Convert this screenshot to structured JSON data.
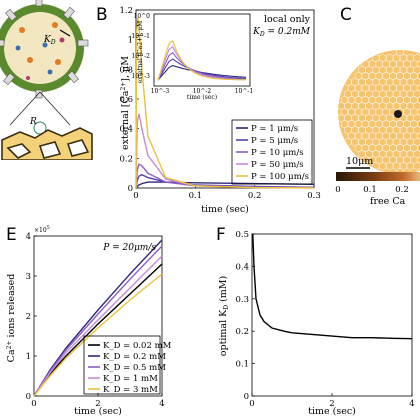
{
  "panels": {
    "B": {
      "letter": "B"
    },
    "C": {
      "letter": "C"
    },
    "E": {
      "letter": "E"
    },
    "F": {
      "letter": "F"
    }
  },
  "panelA": {
    "K_label": "K",
    "K_sub": "D",
    "R_label": "R"
  },
  "panelC": {
    "scale_label": "10μm",
    "colorbar_ticks": [
      "0",
      "0.1",
      "0.2"
    ],
    "colorbar_label": "free Ca",
    "colorbar_colors": [
      "#2a1608",
      "#7a3d12",
      "#c06a2b",
      "#e8b77a"
    ]
  },
  "chart_data": [
    {
      "id": "B",
      "type": "line",
      "xlabel": "time (sec)",
      "ylabel": "external [Ca2+], μM",
      "xlim": [
        0,
        0.3
      ],
      "ylim": [
        0,
        1.2
      ],
      "xticks": [
        "0",
        "0.1",
        "0.2",
        "0.3"
      ],
      "yticks": [
        "0",
        "0.2",
        "0.4",
        "0.6",
        "0.8",
        "1",
        "1.2"
      ],
      "annotation": [
        "local only",
        "K_D = 0.2mM"
      ],
      "legend_position": "lower-right",
      "series": [
        {
          "name": "P = 1 μm/s",
          "color": "#2d2a7a",
          "x": [
            0,
            0.002,
            0.005,
            0.01,
            0.02,
            0.05,
            0.1,
            0.2,
            0.3
          ],
          "y": [
            0,
            0.01,
            0.02,
            0.03,
            0.04,
            0.04,
            0.035,
            0.03,
            0.025
          ]
        },
        {
          "name": "P = 5 μm/s",
          "color": "#5a3fb0",
          "x": [
            0,
            0.002,
            0.005,
            0.01,
            0.02,
            0.05,
            0.1,
            0.2,
            0.3
          ],
          "y": [
            0,
            0.05,
            0.08,
            0.09,
            0.07,
            0.04,
            0.02,
            0.01,
            0.005
          ]
        },
        {
          "name": "P = 10 μm/s",
          "color": "#8c5cc8",
          "x": [
            0,
            0.002,
            0.005,
            0.01,
            0.02,
            0.05,
            0.1,
            0.2,
            0.3
          ],
          "y": [
            0,
            0.12,
            0.16,
            0.15,
            0.1,
            0.04,
            0.015,
            0.005,
            0.002
          ]
        },
        {
          "name": "P = 50 μm/s",
          "color": "#c88ad8",
          "x": [
            0,
            0.002,
            0.005,
            0.01,
            0.02,
            0.05,
            0.1,
            0.2,
            0.3
          ],
          "y": [
            0,
            0.45,
            0.5,
            0.4,
            0.22,
            0.06,
            0.015,
            0.004,
            0.001
          ]
        },
        {
          "name": "P = 100 μm/s",
          "color": "#e8c33a",
          "x": [
            0,
            0.001,
            0.003,
            0.005,
            0.01,
            0.02,
            0.05,
            0.1,
            0.2,
            0.3
          ],
          "y": [
            0,
            1.05,
            1.15,
            1.1,
            0.8,
            0.35,
            0.07,
            0.015,
            0.003,
            0.001
          ]
        }
      ],
      "inset": {
        "type": "line",
        "log_x": true,
        "log_y": true,
        "xlabel": "time (sec)",
        "ylabel": "external [Ca2+], μM",
        "xticks": [
          "10^-3",
          "10^-2",
          "10^-1"
        ],
        "yticks": [
          "10^0",
          "10^-1",
          "10^-2",
          "10^-3"
        ]
      }
    },
    {
      "id": "E",
      "type": "line",
      "xlabel": "time (sec)",
      "ylabel": "Ca2+ ions released",
      "exponent_label": "×10^5",
      "xlim": [
        0,
        4
      ],
      "ylim": [
        0,
        4
      ],
      "xticks": [
        "0",
        "2",
        "4"
      ],
      "yticks": [
        "0",
        "1",
        "2",
        "3",
        "4"
      ],
      "annotation": "P = 20μm/s",
      "legend_position": "lower-right",
      "series": [
        {
          "name": "K_D = 0.02 mM",
          "color": "#000000",
          "x": [
            0,
            0.5,
            1,
            2,
            3,
            4
          ],
          "y": [
            0,
            0.55,
            1.0,
            1.8,
            2.55,
            3.3
          ]
        },
        {
          "name": "K_D = 0.2 mM",
          "color": "#2d2a7a",
          "x": [
            0,
            0.5,
            1,
            2,
            3,
            4
          ],
          "y": [
            0,
            0.65,
            1.2,
            2.15,
            3.05,
            3.9
          ]
        },
        {
          "name": "K_D = 0.5 mM",
          "color": "#8c5cc8",
          "x": [
            0,
            0.5,
            1,
            2,
            3,
            4
          ],
          "y": [
            0,
            0.62,
            1.15,
            2.05,
            2.92,
            3.75
          ]
        },
        {
          "name": "K_D = 1 mM",
          "color": "#c88ad8",
          "x": [
            0,
            0.5,
            1,
            2,
            3,
            4
          ],
          "y": [
            0,
            0.58,
            1.08,
            1.9,
            2.7,
            3.5
          ]
        },
        {
          "name": "K_D = 3 mM",
          "color": "#e8c33a",
          "x": [
            0,
            0.5,
            1,
            2,
            3,
            4
          ],
          "y": [
            0,
            0.5,
            0.95,
            1.7,
            2.4,
            3.05
          ]
        }
      ]
    },
    {
      "id": "F",
      "type": "line",
      "xlabel": "time (sec)",
      "ylabel": "optimal K_D (mM)",
      "xlim": [
        0,
        4
      ],
      "ylim": [
        0,
        0.5
      ],
      "xticks": [
        "0",
        "2",
        "4"
      ],
      "yticks": [
        "0",
        "0.1",
        "0.2",
        "0.3",
        "0.4",
        "0.5"
      ],
      "series": [
        {
          "color": "#000000",
          "x": [
            0.02,
            0.05,
            0.1,
            0.2,
            0.3,
            0.5,
            0.8,
            1.0,
            1.5,
            2.0,
            2.5,
            3.0,
            3.5,
            4.0
          ],
          "y": [
            0.5,
            0.4,
            0.3,
            0.25,
            0.23,
            0.21,
            0.2,
            0.195,
            0.19,
            0.185,
            0.18,
            0.18,
            0.178,
            0.177
          ]
        }
      ]
    }
  ]
}
